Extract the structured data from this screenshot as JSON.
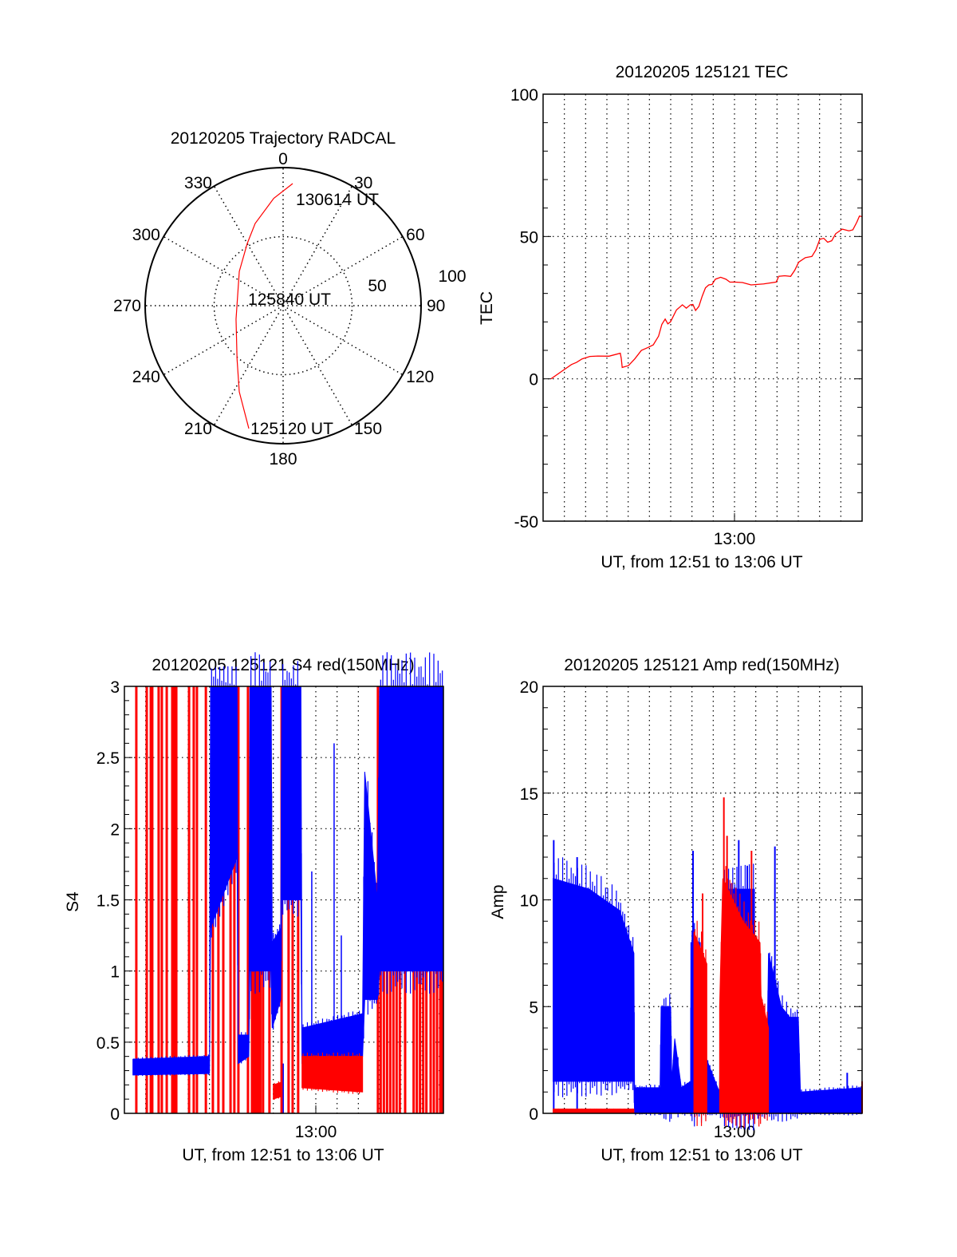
{
  "colors": {
    "red": "#ff0000",
    "blue": "#0000ff",
    "axis": "#000000"
  },
  "chart_data": [
    {
      "type": "polar",
      "title": "20120205 Trajectory RADCAL",
      "angle_labels": [
        "0",
        "30",
        "60",
        "90",
        "120",
        "150",
        "180",
        "210",
        "240",
        "270",
        "300",
        "330"
      ],
      "radial_labels": [
        "50",
        "100"
      ],
      "rlim": [
        0,
        100
      ],
      "series": [
        {
          "name": "trajectory",
          "color": "red",
          "points_az_r": [
            [
              195.6,
              92.4
            ],
            [
              207,
              70
            ],
            [
              220.9,
              51
            ],
            [
              254,
              35.5
            ],
            [
              308,
              40.3
            ],
            [
              330,
              52
            ],
            [
              341.2,
              62.9
            ],
            [
              355,
              78
            ],
            [
              4.5,
              88.7
            ]
          ]
        }
      ],
      "annotations": [
        {
          "text": "130614 UT",
          "az": 4.5,
          "r": 88.7
        },
        {
          "text": "125840 UT",
          "az": 0,
          "r": 0
        },
        {
          "text": "125120 UT",
          "az": 195.6,
          "r": 92.4
        }
      ]
    },
    {
      "type": "line",
      "title": "20120205 125121 TEC",
      "ylabel": "TEC",
      "xlabel": "UT, from 12:51 to 13:06 UT",
      "x_units": "minutes after 12:51",
      "xlim": [
        0,
        15
      ],
      "ylim": [
        -50,
        100
      ],
      "yticks": [
        "100",
        "50",
        "0",
        "-50"
      ],
      "xtick_labels": [
        {
          "x": 9,
          "label": "13:00"
        }
      ],
      "grid": true,
      "series": [
        {
          "name": "TEC",
          "color": "red",
          "x": [
            0.37,
            1.33,
            1.83,
            2.57,
            3.63,
            3.72,
            4.31,
            4.93,
            5.43,
            5.74,
            5.99,
            6.55,
            6.92,
            7.17,
            7.48,
            7.79,
            8.1,
            8.6,
            8.97,
            9.78,
            10.96,
            11.08,
            11.64,
            12.02,
            12.64,
            13.01,
            13.38,
            13.76,
            14.38,
            14.75,
            15.0
          ],
          "y": [
            0,
            5,
            7,
            8,
            9,
            4,
            7,
            11,
            15,
            21,
            20,
            26,
            26,
            24,
            29,
            33,
            35,
            35,
            34,
            33,
            34,
            36,
            36,
            41,
            43,
            49,
            48,
            51,
            52,
            55,
            57
          ]
        }
      ]
    },
    {
      "type": "line",
      "title": "20120205 125121 S4 red(150MHz)",
      "ylabel": "S4",
      "xlabel": "UT, from 12:51 to 13:06 UT",
      "x_units": "minutes after 12:51",
      "xlim": [
        0,
        15
      ],
      "ylim": [
        0,
        3
      ],
      "yticks": [
        "0",
        "0.5",
        "1",
        "1.5",
        "2",
        "2.5",
        "3"
      ],
      "xtick_labels": [
        {
          "x": 9,
          "label": "13:00"
        }
      ],
      "grid": true,
      "series": [
        {
          "name": "red spikes",
          "color": "red",
          "kind": "spikes_full",
          "x": [
            0.56,
            1.05,
            1.24,
            1.31,
            1.61,
            1.76,
            1.99,
            2.25,
            2.3,
            2.35,
            2.4,
            2.44,
            3.04,
            3.26,
            3.41,
            3.83,
            4.16,
            4.42,
            4.65,
            4.99,
            5.17,
            5.36,
            5.81,
            6.0,
            6.11,
            6.19,
            6.3,
            6.4,
            6.52,
            6.82,
            7.39,
            7.72,
            7.91,
            8.17,
            11.92,
            12.05,
            12.2,
            12.35,
            12.5,
            12.65,
            12.8,
            12.95,
            13.2,
            13.6,
            13.75,
            13.9,
            14.05,
            14.2,
            14.4,
            14.55,
            14.7,
            14.85,
            14.95
          ]
        },
        {
          "name": "blue",
          "color": "blue",
          "kind": "envelope",
          "points_x_lo_hi": [
            [
              0.4,
              0.27,
              0.38
            ],
            [
              4.0,
              0.28,
              0.4
            ],
            [
              4.05,
              1.3,
              3.0
            ],
            [
              5.3,
              1.8,
              3.0
            ],
            [
              5.35,
              0.35,
              0.55
            ],
            [
              5.85,
              0.4,
              0.55
            ],
            [
              5.9,
              1.0,
              3.0
            ],
            [
              6.9,
              1.0,
              3.0
            ],
            [
              6.95,
              0.6,
              1.2
            ],
            [
              7.35,
              0.8,
              1.3
            ],
            [
              7.4,
              1.5,
              3.0
            ],
            [
              8.3,
              1.5,
              3.0
            ],
            [
              8.35,
              0.35,
              0.6
            ],
            [
              11.2,
              0.4,
              0.7
            ],
            [
              11.3,
              0.8,
              2.4
            ],
            [
              11.9,
              0.8,
              1.5
            ],
            [
              12.0,
              1.0,
              3.0
            ],
            [
              15.0,
              1.0,
              3.0
            ]
          ]
        },
        {
          "name": "blue spikes",
          "color": "blue",
          "kind": "spikes",
          "x_hi": [
            [
              9.86,
              2.6
            ],
            [
              8.81,
              1.7
            ],
            [
              10.2,
              1.25
            ],
            [
              7.47,
              0.0
            ]
          ]
        },
        {
          "name": "red low",
          "color": "red",
          "kind": "envelope",
          "points_x_lo_hi": [
            [
              7.0,
              0.1,
              0.2
            ],
            [
              7.4,
              0.12,
              0.22
            ],
            [
              7.45,
              null,
              null
            ],
            [
              8.35,
              0.18,
              0.4
            ],
            [
              11.2,
              0.15,
              0.4
            ]
          ]
        }
      ]
    },
    {
      "type": "line",
      "title": "20120205 125121 Amp red(150MHz)",
      "ylabel": "Amp",
      "xlabel": "UT, from 12:51 to 13:06 UT",
      "x_units": "minutes after 12:51",
      "xlim": [
        0,
        15
      ],
      "ylim": [
        0,
        20
      ],
      "yticks": [
        "0",
        "5",
        "10",
        "15",
        "20"
      ],
      "xtick_labels": [
        {
          "x": 9,
          "label": "13:00"
        }
      ],
      "grid": true,
      "series": [
        {
          "name": "blue",
          "color": "blue",
          "kind": "envelope",
          "points_x_lo_hi": [
            [
              0.47,
              1.5,
              11
            ],
            [
              2.17,
              1.5,
              10.5
            ],
            [
              3.6,
              1.5,
              9.5
            ],
            [
              4.27,
              1.5,
              7.5
            ],
            [
              4.3,
              0,
              1.2
            ],
            [
              5.5,
              0,
              1.2
            ],
            [
              5.55,
              0,
              5
            ],
            [
              6.0,
              0,
              5
            ],
            [
              6.05,
              0,
              1.5
            ],
            [
              6.19,
              0,
              3.5
            ],
            [
              6.5,
              0,
              1.2
            ],
            [
              6.94,
              0,
              1.5
            ],
            [
              6.95,
              0,
              8
            ],
            [
              7.39,
              0,
              8
            ],
            [
              7.5,
              0,
              3
            ],
            [
              8.29,
              0,
              1
            ],
            [
              8.48,
              0,
              10.5
            ],
            [
              9.94,
              0,
              10.5
            ],
            [
              9.95,
              0,
              4
            ],
            [
              10.55,
              0,
              4
            ],
            [
              10.6,
              0,
              7.5
            ],
            [
              11.2,
              0,
              5
            ],
            [
              11.6,
              0,
              4.5
            ],
            [
              12.0,
              0,
              4.5
            ],
            [
              12.1,
              0,
              1
            ],
            [
              15.0,
              0,
              1.2
            ]
          ]
        },
        {
          "name": "blue spikes",
          "color": "blue",
          "kind": "spikes",
          "x_hi": [
            [
              0.5,
              12.8
            ],
            [
              1.6,
              12.0
            ],
            [
              7.05,
              12.3
            ],
            [
              9.2,
              12.8
            ],
            [
              9.6,
              11.6
            ],
            [
              10.9,
              12.5
            ],
            [
              14.3,
              1.9
            ]
          ]
        },
        {
          "name": "red",
          "color": "red",
          "kind": "envelope",
          "points_x_lo_hi": [
            [
              0.47,
              0,
              0.2
            ],
            [
              4.27,
              0,
              0.2
            ],
            [
              4.3,
              null,
              null
            ],
            [
              7.09,
              0,
              8.5
            ],
            [
              7.7,
              0,
              7.0
            ],
            [
              7.75,
              null,
              null
            ],
            [
              8.3,
              0,
              5
            ],
            [
              8.45,
              0,
              11
            ],
            [
              9.4,
              0,
              9
            ],
            [
              10.2,
              0,
              8
            ],
            [
              10.25,
              0,
              5.5
            ],
            [
              10.6,
              0,
              4
            ],
            [
              10.65,
              null,
              null
            ]
          ]
        },
        {
          "name": "red spikes",
          "color": "red",
          "kind": "spikes",
          "x_hi": [
            [
              8.5,
              14.8
            ],
            [
              8.65,
              13.0
            ],
            [
              7.5,
              10.3
            ],
            [
              9.8,
              12.3
            ],
            [
              15.0,
              1.5
            ]
          ]
        }
      ]
    }
  ]
}
